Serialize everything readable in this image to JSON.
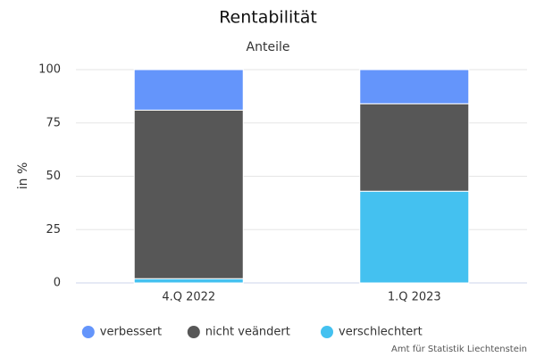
{
  "chart_data": {
    "type": "stacked_bar",
    "title": "Rentabilität",
    "subtitle": "Anteile",
    "y_label": "in %",
    "categories": [
      "4.Q 2022",
      "1.Q 2023"
    ],
    "series": [
      {
        "name": "verbessert",
        "color": "#6495fb",
        "values": [
          19,
          16
        ]
      },
      {
        "name": "nicht veändert",
        "color": "#575757",
        "values": [
          79,
          41
        ]
      },
      {
        "name": "verschlechtert",
        "color": "#44c1f0",
        "values": [
          2,
          43
        ]
      }
    ],
    "ylim": [
      0,
      100
    ],
    "yticks": [
      0,
      25,
      50,
      75,
      100
    ],
    "grid": true,
    "credit": "Amt für Statistik Liechtenstein"
  }
}
